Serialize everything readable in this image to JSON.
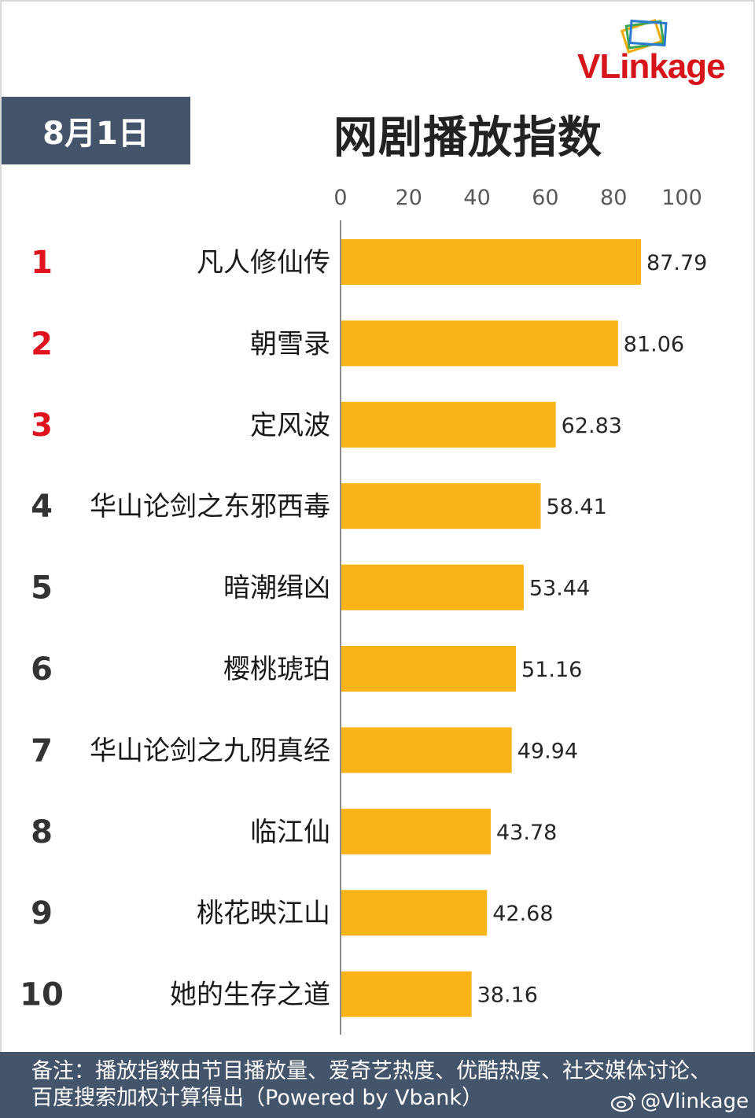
{
  "header": {
    "date": "8月1日",
    "title": "网剧播放指数",
    "logo_text": "VLinkage"
  },
  "colors": {
    "bar": "#fbb417",
    "top_rank": "#e0141e",
    "rank": "#333333",
    "header_bg": "#44546a",
    "logo": "#d7141a"
  },
  "chart_data": {
    "type": "bar",
    "orientation": "horizontal",
    "title": "网剧播放指数",
    "xlim": [
      0,
      100
    ],
    "xticks": [
      "0",
      "20",
      "40",
      "60",
      "80",
      "100"
    ],
    "ranks": [
      "1",
      "2",
      "3",
      "4",
      "5",
      "6",
      "7",
      "8",
      "9",
      "10"
    ],
    "categories": [
      "凡人修仙传",
      "朝雪录",
      "定风波",
      "华山论剑之东邪西毒",
      "暗潮缉凶",
      "樱桃琥珀",
      "华山论剑之九阴真经",
      "临江仙",
      "桃花映江山",
      "她的生存之道"
    ],
    "values": [
      87.79,
      81.06,
      62.83,
      58.41,
      53.44,
      51.16,
      49.94,
      43.78,
      42.68,
      38.16
    ],
    "value_labels": [
      "87.79",
      "81.06",
      "62.83",
      "58.41",
      "53.44",
      "51.16",
      "49.94",
      "43.78",
      "42.68",
      "38.16"
    ],
    "grid": false
  },
  "footer": {
    "note": "备注：播放指数由节目播放量、爱奇艺热度、优酷热度、社交媒体讨论、百度搜索加权计算得出（Powered by Vbank）",
    "watermark": "@Vlinkage"
  }
}
